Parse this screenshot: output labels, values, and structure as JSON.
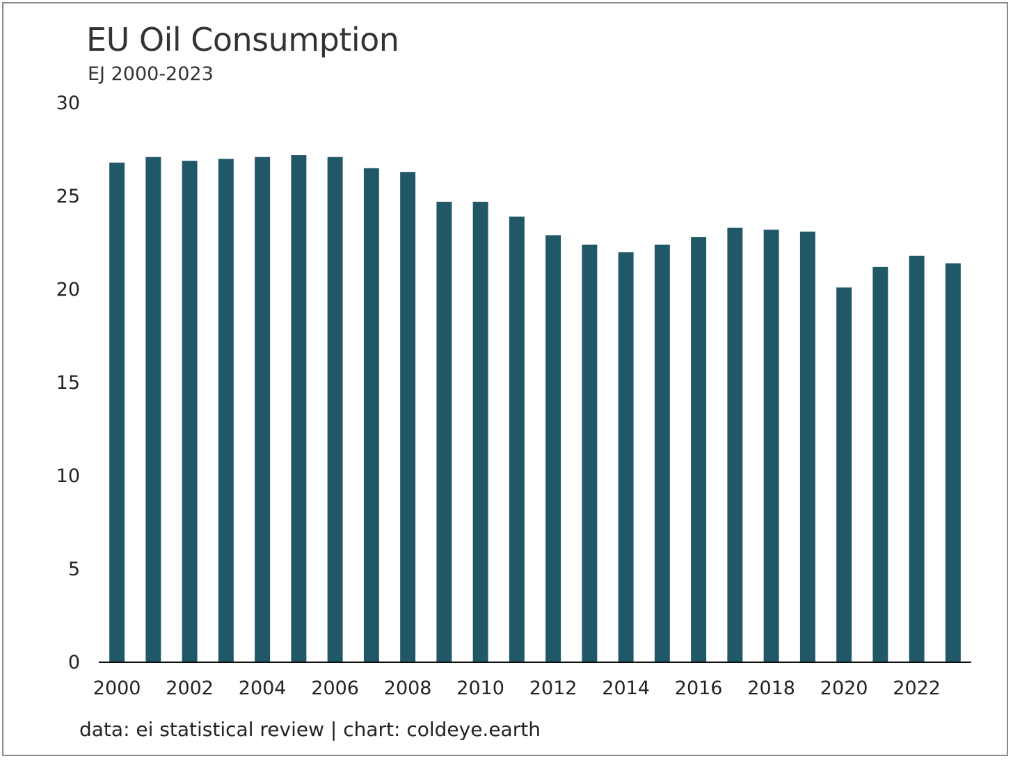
{
  "chart_data": {
    "type": "bar",
    "title": "EU Oil Consumption",
    "subtitle": "EJ 2000-2023",
    "source": "data: ei statistical review | chart: coldeye.earth",
    "color": "#215868",
    "categories": [
      "2000",
      "2001",
      "2002",
      "2003",
      "2004",
      "2005",
      "2006",
      "2007",
      "2008",
      "2009",
      "2010",
      "2011",
      "2012",
      "2013",
      "2014",
      "2015",
      "2016",
      "2017",
      "2018",
      "2019",
      "2020",
      "2021",
      "2022",
      "2023"
    ],
    "x_tick_labels": [
      "2000",
      "2002",
      "2004",
      "2006",
      "2008",
      "2010",
      "2012",
      "2014",
      "2016",
      "2018",
      "2020",
      "2022"
    ],
    "values": [
      26.8,
      27.1,
      26.9,
      27.0,
      27.1,
      27.2,
      27.1,
      26.5,
      26.3,
      24.7,
      24.7,
      23.9,
      22.9,
      22.4,
      22.0,
      22.4,
      22.8,
      23.3,
      23.2,
      23.1,
      20.1,
      21.2,
      21.8,
      21.4
    ],
    "y_ticks": [
      0,
      5,
      10,
      15,
      20,
      25,
      30
    ],
    "ylim": [
      0,
      30
    ],
    "xlabel": "",
    "ylabel": "",
    "grid": false,
    "legend": "none"
  }
}
